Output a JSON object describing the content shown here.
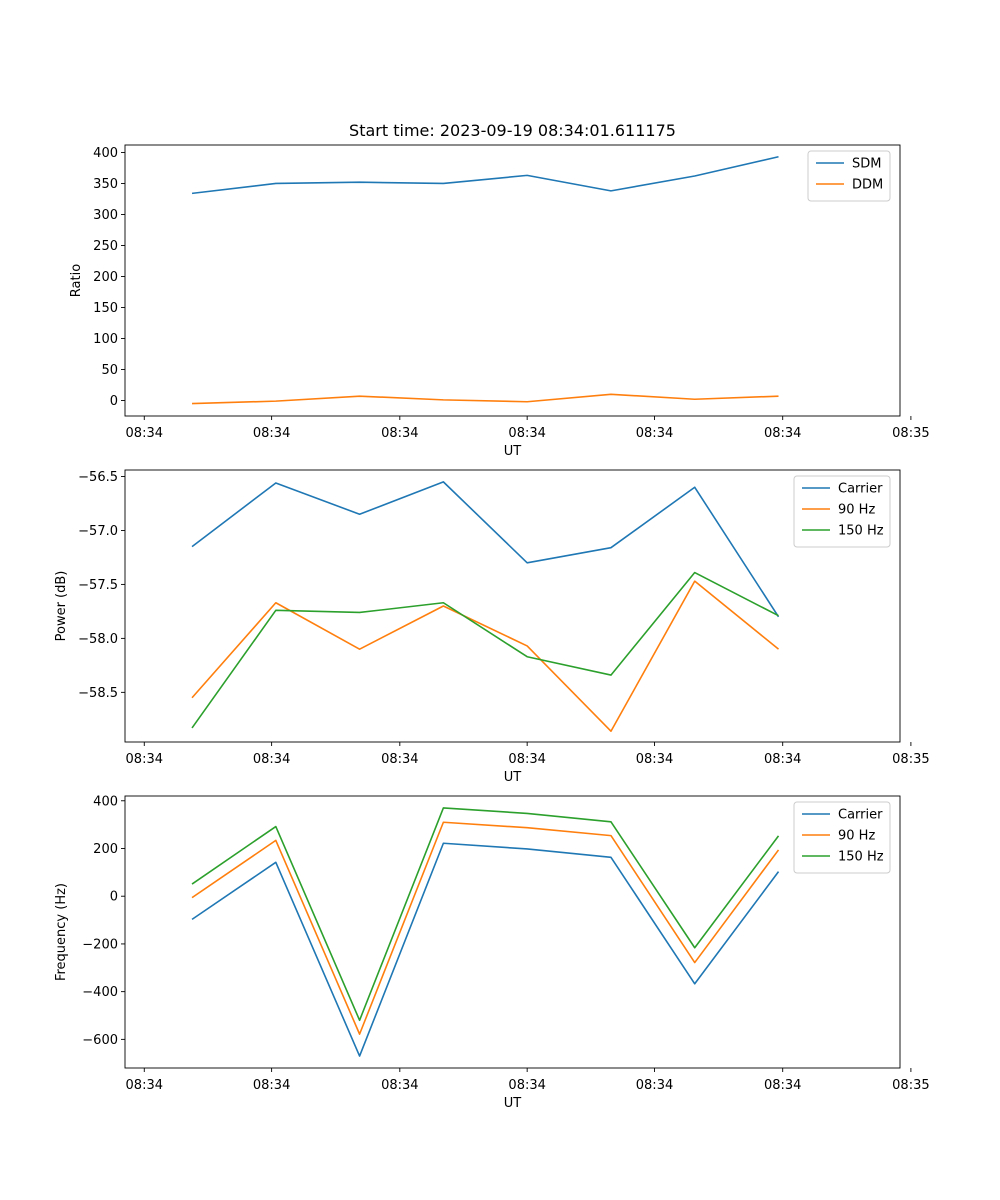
{
  "chart_data": [
    {
      "type": "line",
      "title": "Start time: 2023-09-19 08:34:01.611175",
      "xlabel": "UT",
      "ylabel": "Ratio",
      "x": [
        1,
        2,
        3,
        4,
        5,
        6,
        7,
        8
      ],
      "xlim": [
        0.2,
        9.45
      ],
      "x_ticks": [
        0.43,
        1.95,
        3.48,
        5.0,
        6.52,
        8.05,
        9.58
      ],
      "x_tick_labels": [
        "08:34",
        "08:34",
        "08:34",
        "08:34",
        "08:34",
        "08:34",
        "08:35"
      ],
      "ylim": [
        -25,
        412
      ],
      "y_ticks": [
        0,
        50,
        100,
        150,
        200,
        250,
        300,
        350,
        400
      ],
      "y_tick_labels": [
        "0",
        "50",
        "100",
        "150",
        "200",
        "250",
        "300",
        "350",
        "400"
      ],
      "legend_position": "top-right",
      "series": [
        {
          "name": "SDM",
          "color": "#1f77b4",
          "values": [
            334,
            350,
            352,
            350,
            363,
            338,
            362,
            393
          ]
        },
        {
          "name": "DDM",
          "color": "#ff7f0e",
          "values": [
            -5,
            -1,
            7,
            1,
            -2,
            10,
            2,
            7
          ]
        }
      ]
    },
    {
      "type": "line",
      "xlabel": "UT",
      "ylabel": "Power (dB)",
      "x": [
        1,
        2,
        3,
        4,
        5,
        6,
        7,
        8
      ],
      "xlim": [
        0.2,
        9.45
      ],
      "x_ticks": [
        0.43,
        1.95,
        3.48,
        5.0,
        6.52,
        8.05,
        9.58
      ],
      "x_tick_labels": [
        "08:34",
        "08:34",
        "08:34",
        "08:34",
        "08:34",
        "08:34",
        "08:35"
      ],
      "ylim": [
        -58.96,
        -56.44
      ],
      "y_ticks": [
        -58.5,
        -58.0,
        -57.5,
        -57.0,
        -56.5
      ],
      "y_tick_labels": [
        "−58.5",
        "−58.0",
        "−57.5",
        "−57.0",
        "−56.5"
      ],
      "legend_position": "top-right",
      "series": [
        {
          "name": "Carrier",
          "color": "#1f77b4",
          "values": [
            -57.15,
            -56.56,
            -56.85,
            -56.55,
            -57.3,
            -57.16,
            -56.6,
            -57.8
          ]
        },
        {
          "name": "90 Hz",
          "color": "#ff7f0e",
          "values": [
            -58.55,
            -57.67,
            -58.1,
            -57.7,
            -58.07,
            -58.86,
            -57.47,
            -58.1
          ]
        },
        {
          "name": "150 Hz",
          "color": "#2ca02c",
          "values": [
            -58.83,
            -57.74,
            -57.76,
            -57.67,
            -58.17,
            -58.34,
            -57.39,
            -57.79
          ]
        }
      ]
    },
    {
      "type": "line",
      "xlabel": "UT",
      "ylabel": "Frequency (Hz)",
      "x": [
        1,
        2,
        3,
        4,
        5,
        6,
        7,
        8
      ],
      "xlim": [
        0.2,
        9.45
      ],
      "x_ticks": [
        0.43,
        1.95,
        3.48,
        5.0,
        6.52,
        8.05,
        9.58
      ],
      "x_tick_labels": [
        "08:34",
        "08:34",
        "08:34",
        "08:34",
        "08:34",
        "08:34",
        "08:35"
      ],
      "ylim": [
        -720,
        420
      ],
      "y_ticks": [
        -600,
        -400,
        -200,
        0,
        200,
        400
      ],
      "y_tick_labels": [
        "−600",
        "−400",
        "−200",
        "0",
        "200",
        "400"
      ],
      "legend_position": "top-right",
      "series": [
        {
          "name": "Carrier",
          "color": "#1f77b4",
          "values": [
            -97,
            142,
            -670,
            222,
            198,
            163,
            -367,
            103
          ]
        },
        {
          "name": "90 Hz",
          "color": "#ff7f0e",
          "values": [
            -6,
            234,
            -578,
            310,
            287,
            254,
            -278,
            194
          ]
        },
        {
          "name": "150 Hz",
          "color": "#2ca02c",
          "values": [
            51,
            292,
            -520,
            370,
            347,
            312,
            -216,
            253
          ]
        }
      ]
    }
  ]
}
